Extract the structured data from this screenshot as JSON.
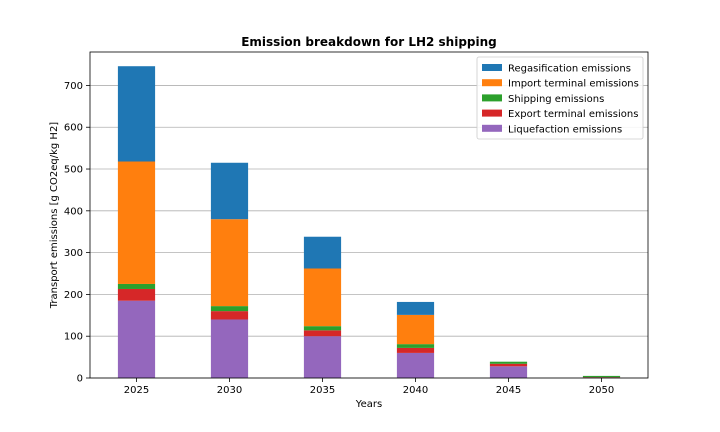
{
  "chart_data": {
    "type": "bar",
    "stacked": true,
    "title": "Emission breakdown for LH2 shipping",
    "xlabel": "Years",
    "ylabel": "Transport emissions [g CO2eq/kg H2]",
    "categories": [
      "2025",
      "2030",
      "2035",
      "2040",
      "2045",
      "2050"
    ],
    "ylim": [
      0,
      780
    ],
    "yticks": [
      0,
      100,
      200,
      300,
      400,
      500,
      600,
      700
    ],
    "grid": "horizontal",
    "legend_position": "top-right",
    "series": [
      {
        "name": "Liquefaction emissions",
        "color": "#9467bd",
        "values": [
          185,
          140,
          100,
          60,
          28,
          1
        ]
      },
      {
        "name": "Export terminal emissions",
        "color": "#d62728",
        "values": [
          28,
          20,
          14,
          12,
          6,
          1
        ]
      },
      {
        "name": "Shipping emissions",
        "color": "#2ca02c",
        "values": [
          12,
          12,
          10,
          9,
          5,
          3
        ]
      },
      {
        "name": "Import terminal emissions",
        "color": "#ff7f0e",
        "values": [
          293,
          208,
          138,
          70,
          0,
          0
        ]
      },
      {
        "name": "Regasification emissions",
        "color": "#1f77b4",
        "values": [
          228,
          135,
          76,
          31,
          0,
          0
        ]
      }
    ],
    "legend_order": [
      "Regasification emissions",
      "Import terminal emissions",
      "Shipping emissions",
      "Export terminal emissions",
      "Liquefaction emissions"
    ]
  }
}
